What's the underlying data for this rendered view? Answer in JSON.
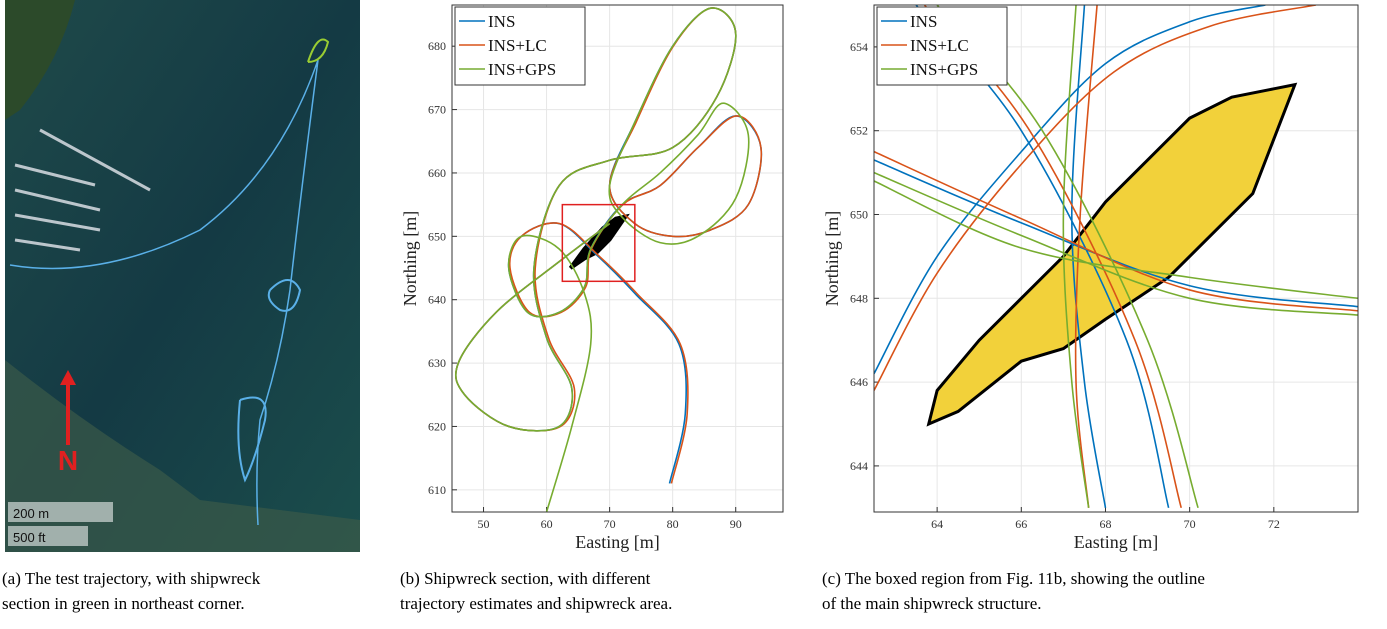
{
  "panel_a": {
    "scale_labels": [
      "200 m",
      "500 ft"
    ],
    "north_label": "N"
  },
  "captions": [
    [
      "(a) The test trajectory, with shipwreck",
      "section in green in northeast corner."
    ],
    [
      "(b) Shipwreck section, with different",
      "trajectory estimates and shipwreck area."
    ],
    [
      "(c) The boxed region from Fig. 11b, showing the outline",
      "of the main shipwreck structure."
    ]
  ],
  "chart_data": [
    {
      "type": "line",
      "xlabel": "Easting [m]",
      "ylabel": "Northing [m]",
      "xlim": [
        45,
        97.5
      ],
      "ylim": [
        606.5,
        686.5
      ],
      "xticks": [
        50,
        60,
        70,
        80,
        90
      ],
      "yticks": [
        610,
        620,
        630,
        640,
        650,
        660,
        670,
        680
      ],
      "grid": true,
      "legend": "upper-left",
      "series": [
        {
          "name": "INS",
          "color": "#0072BD",
          "x": [
            79.5,
            82,
            81,
            74,
            68,
            62,
            56,
            54,
            57,
            62,
            66,
            67,
            72,
            78,
            84,
            90,
            94,
            92,
            86,
            80,
            74,
            70,
            74,
            80,
            86,
            90,
            87,
            80,
            70,
            62,
            58,
            60,
            64,
            62,
            54,
            47,
            46,
            52,
            62,
            70
          ],
          "y": [
            611,
            622,
            633,
            641,
            647,
            652,
            650,
            645,
            638,
            638,
            642,
            648,
            655,
            658,
            664,
            669,
            664,
            655,
            651,
            650,
            652,
            658,
            668,
            680,
            686,
            682,
            672,
            664,
            662,
            658,
            645,
            634,
            626,
            620,
            620,
            625,
            630,
            638,
            646,
            652
          ]
        },
        {
          "name": "INS+LC",
          "color": "#D95319",
          "x": [
            79.8,
            82.3,
            81.2,
            74.3,
            68.2,
            62.1,
            56,
            54.2,
            57.3,
            62.3,
            66.2,
            67.1,
            72.1,
            78,
            84,
            90.2,
            94,
            92,
            86,
            80,
            74,
            70,
            74.2,
            80.1,
            86,
            90,
            87,
            80,
            70,
            62,
            58.2,
            60.3,
            64.4,
            62.2,
            54,
            47,
            46,
            52,
            62,
            70
          ],
          "y": [
            611,
            622,
            633,
            641,
            647,
            652,
            650,
            645,
            638,
            638,
            642,
            648,
            655,
            658,
            664,
            669,
            664,
            655,
            651,
            650,
            652,
            658,
            668,
            680,
            686,
            682,
            672,
            664,
            662,
            658,
            645,
            634,
            626,
            620,
            620,
            625,
            630,
            638,
            646,
            652
          ]
        },
        {
          "name": "INS+GPS",
          "color": "#77AC30",
          "x": [
            60,
            64,
            67,
            66,
            62,
            56,
            54,
            57,
            62,
            66,
            67,
            72,
            78,
            84,
            88,
            92,
            90,
            84,
            78,
            72,
            70,
            74,
            80,
            86,
            90,
            87,
            80,
            70,
            62,
            58,
            60,
            64,
            62,
            54,
            47,
            46,
            52,
            62,
            70
          ],
          "y": [
            606.5,
            620,
            633,
            641,
            648,
            650,
            645,
            638,
            638,
            642,
            648,
            655,
            660,
            666,
            671,
            666,
            656,
            650,
            649,
            653,
            658,
            668,
            680,
            686,
            682,
            672,
            664,
            662,
            658,
            645,
            634,
            626,
            620,
            620,
            625,
            630,
            638,
            646,
            652
          ]
        }
      ],
      "outline": {
        "x": [
          63.8,
          66,
          68,
          70,
          72.5,
          71,
          69,
          66
        ],
        "y": [
          645,
          646.5,
          647.5,
          649.5,
          653.1,
          652.8,
          651.3,
          648
        ]
      },
      "box": {
        "x": [
          62.5,
          74
        ],
        "y": [
          642.9,
          655
        ]
      }
    },
    {
      "type": "line",
      "xlabel": "Easting [m]",
      "ylabel": "Northing [m]",
      "xlim": [
        62.5,
        74
      ],
      "ylim": [
        642.9,
        655
      ],
      "xticks": [
        64,
        66,
        68,
        70,
        72
      ],
      "yticks": [
        644,
        646,
        648,
        650,
        652,
        654
      ],
      "grid": true,
      "legend": "upper-left",
      "series": [
        {
          "name": "INS",
          "color": "#0072BD",
          "x": [
            62.5,
            66,
            70,
            74,
            null,
            63.5,
            66,
            68.5,
            69.5,
            null,
            62.5,
            64,
            66,
            68,
            70,
            71.8,
            null,
            67.5,
            67.2,
            67.5,
            68
          ],
          "y": [
            651.3,
            649.8,
            648.3,
            647.8,
            null,
            655,
            652,
            647,
            643,
            null,
            646.2,
            649,
            651.5,
            653.6,
            654.6,
            655,
            null,
            655,
            650,
            646,
            643
          ]
        },
        {
          "name": "INS+LC",
          "color": "#D95319",
          "x": [
            62.5,
            66,
            70,
            74,
            null,
            63.7,
            66.2,
            68.7,
            69.8,
            null,
            62.5,
            64,
            66,
            68.2,
            70.5,
            73,
            null,
            67.8,
            67.4,
            67.3,
            67.6
          ],
          "y": [
            651.5,
            649.9,
            648.2,
            647.7,
            null,
            655,
            652,
            647,
            643,
            null,
            645.8,
            648.6,
            651.2,
            653.4,
            654.5,
            655,
            null,
            655,
            650,
            646,
            643
          ]
        },
        {
          "name": "INS+GPS",
          "color": "#77AC30",
          "x": [
            62.5,
            66,
            70,
            74,
            null,
            64,
            66.5,
            69,
            70.2,
            null,
            62.5,
            66,
            70,
            74,
            null,
            67.3,
            67,
            67.2,
            67.6
          ],
          "y": [
            651,
            649.5,
            648,
            647.6,
            null,
            655,
            652,
            647,
            643,
            null,
            650.8,
            649.2,
            648.5,
            648,
            null,
            655,
            650,
            646,
            643
          ]
        }
      ],
      "outline": {
        "x": [
          63.8,
          64.5,
          66,
          67,
          68,
          69.5,
          70.5,
          71.5,
          72,
          72.5,
          72,
          71,
          70,
          69,
          68,
          67,
          66,
          65,
          64
        ],
        "y": [
          645,
          645.3,
          646.5,
          646.8,
          647.5,
          648.5,
          649.5,
          650.5,
          651.8,
          653.1,
          653,
          652.8,
          652.3,
          651.3,
          650.3,
          649,
          648,
          647,
          645.8
        ]
      }
    }
  ]
}
